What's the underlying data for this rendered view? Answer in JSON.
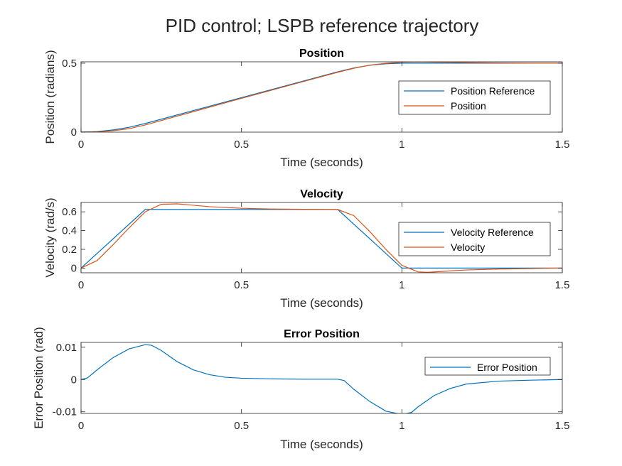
{
  "figure": {
    "title": "PID control; LSPB reference trajectory"
  },
  "colors": {
    "series1": "#0072BD",
    "series2": "#D95319",
    "axis": "#262626"
  },
  "chart_data": [
    {
      "type": "line",
      "title": "Position",
      "xlabel": "Time (seconds)",
      "ylabel": "Position (radians)",
      "xlim": [
        0,
        1.5
      ],
      "ylim": [
        0,
        0.51
      ],
      "xticks": [
        0,
        0.5,
        1,
        1.5
      ],
      "xtick_labels": [
        "0",
        "0.5",
        "1",
        "1.5"
      ],
      "yticks": [
        0,
        0.5
      ],
      "ytick_labels": [
        "0",
        "0.5"
      ],
      "legend": {
        "entries": [
          "Position Reference",
          "Position"
        ],
        "location": "right"
      },
      "x": [
        0,
        0.05,
        0.1,
        0.15,
        0.2,
        0.3,
        0.4,
        0.5,
        0.6,
        0.7,
        0.8,
        0.85,
        0.9,
        0.95,
        1.0,
        1.05,
        1.1,
        1.2,
        1.3,
        1.4,
        1.5
      ],
      "series": [
        {
          "name": "Position Reference",
          "values": [
            0,
            0.004,
            0.016,
            0.035,
            0.0625,
            0.125,
            0.1875,
            0.25,
            0.3125,
            0.375,
            0.4375,
            0.465,
            0.485,
            0.496,
            0.5,
            0.5,
            0.5,
            0.5,
            0.5,
            0.5,
            0.5
          ]
        },
        {
          "name": "Position",
          "values": [
            0,
            0.002,
            0.01,
            0.025,
            0.052,
            0.116,
            0.181,
            0.245,
            0.308,
            0.371,
            0.434,
            0.463,
            0.486,
            0.499,
            0.508,
            0.51,
            0.508,
            0.504,
            0.502,
            0.5,
            0.5
          ]
        }
      ]
    },
    {
      "type": "line",
      "title": "Velocity",
      "xlabel": "Time (seconds)",
      "ylabel": "Velocity (rad/s)",
      "xlim": [
        0,
        1.5
      ],
      "ylim": [
        -0.05,
        0.7
      ],
      "xticks": [
        0,
        0.5,
        1,
        1.5
      ],
      "xtick_labels": [
        "0",
        "0.5",
        "1",
        "1.5"
      ],
      "yticks": [
        0,
        0.2,
        0.4,
        0.6
      ],
      "ytick_labels": [
        "0",
        "0.2",
        "0.4",
        "0.6"
      ],
      "legend": {
        "entries": [
          "Velocity Reference",
          "Velocity"
        ],
        "location": "right"
      },
      "series": [
        {
          "name": "Velocity Reference",
          "x": [
            0,
            0.2,
            0.8,
            1.0,
            1.5
          ],
          "values": [
            0,
            0.625,
            0.625,
            0,
            0
          ]
        },
        {
          "name": "Velocity",
          "x": [
            0,
            0.05,
            0.1,
            0.15,
            0.2,
            0.25,
            0.3,
            0.35,
            0.4,
            0.5,
            0.6,
            0.7,
            0.8,
            0.85,
            0.9,
            0.95,
            1.0,
            1.05,
            1.08,
            1.15,
            1.2,
            1.3,
            1.4,
            1.5
          ],
          "values": [
            0,
            0.08,
            0.25,
            0.43,
            0.6,
            0.68,
            0.685,
            0.67,
            0.655,
            0.638,
            0.63,
            0.627,
            0.625,
            0.56,
            0.39,
            0.2,
            0.03,
            -0.04,
            -0.045,
            -0.03,
            -0.02,
            -0.01,
            -0.005,
            0
          ]
        }
      ]
    },
    {
      "type": "line",
      "title": "Error Position",
      "xlabel": "Time (seconds)",
      "ylabel": "Error Position (rad)",
      "xlim": [
        0,
        1.5
      ],
      "ylim": [
        -0.0105,
        0.0115
      ],
      "xticks": [
        0,
        0.5,
        1,
        1.5
      ],
      "xtick_labels": [
        "0",
        "0.5",
        "1",
        "1.5"
      ],
      "yticks": [
        -0.01,
        0,
        0.01
      ],
      "ytick_labels": [
        "-0.01",
        "0",
        "0.01"
      ],
      "legend": {
        "entries": [
          "Error Position"
        ],
        "location": "right"
      },
      "series": [
        {
          "name": "Error Position",
          "x": [
            0,
            0.02,
            0.05,
            0.1,
            0.15,
            0.2,
            0.22,
            0.25,
            0.3,
            0.35,
            0.4,
            0.45,
            0.5,
            0.6,
            0.7,
            0.8,
            0.82,
            0.85,
            0.9,
            0.95,
            1.0,
            1.03,
            1.05,
            1.1,
            1.15,
            1.2,
            1.3,
            1.4,
            1.5
          ],
          "values": [
            0,
            0.0005,
            0.003,
            0.0068,
            0.0095,
            0.0108,
            0.0106,
            0.009,
            0.0055,
            0.003,
            0.0015,
            0.0007,
            0.0004,
            0.0002,
            0.0001,
            0.0001,
            -0.0003,
            -0.003,
            -0.0068,
            -0.0098,
            -0.0108,
            -0.0102,
            -0.0085,
            -0.005,
            -0.0028,
            -0.0014,
            -0.0005,
            -0.0002,
            0
          ]
        }
      ]
    }
  ]
}
